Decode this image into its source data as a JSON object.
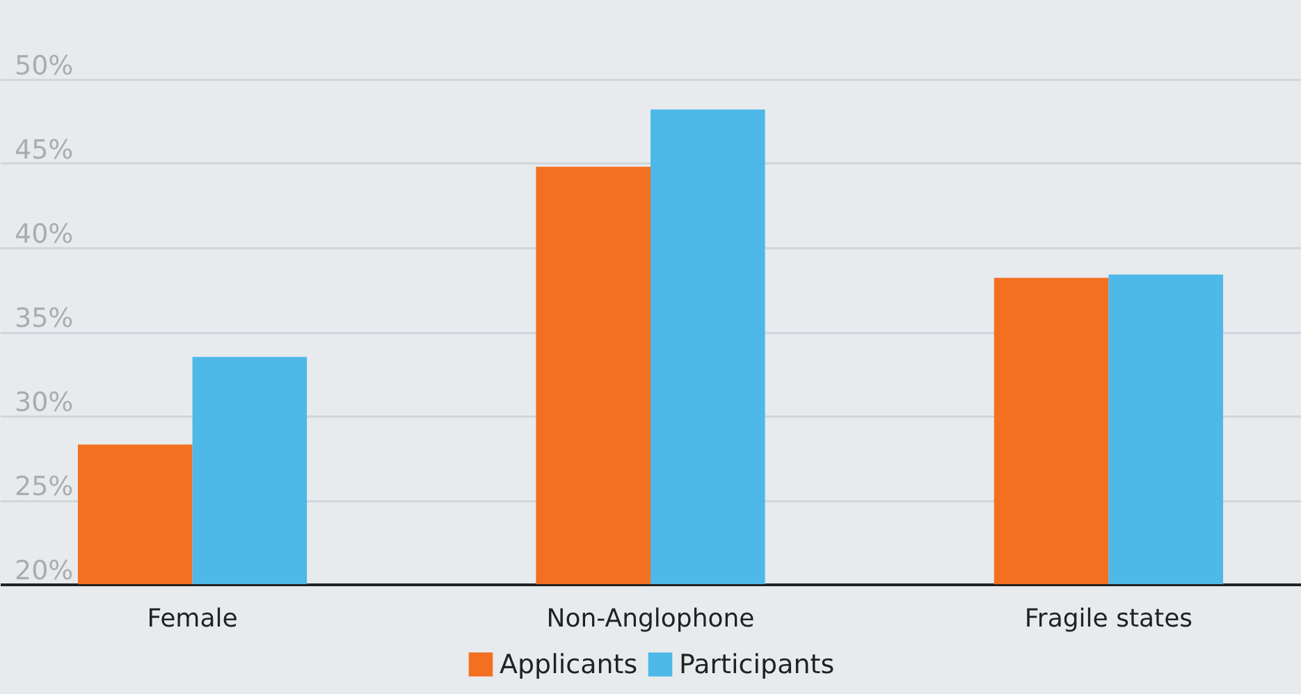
{
  "chart_data": {
    "type": "bar",
    "categories": [
      "Female",
      "Non-Anglophone",
      "Fragile states"
    ],
    "series": [
      {
        "name": "Applicants",
        "color": "#f37021",
        "values": [
          28.3,
          44.8,
          38.2
        ]
      },
      {
        "name": "Participants",
        "color": "#4eb8e8",
        "values": [
          33.5,
          48.2,
          38.4
        ]
      }
    ],
    "ylim": [
      20,
      50
    ],
    "yticks": [
      {
        "value": 20,
        "label": "20%"
      },
      {
        "value": 25,
        "label": "25%"
      },
      {
        "value": 30,
        "label": "30%"
      },
      {
        "value": 35,
        "label": "35%"
      },
      {
        "value": 40,
        "label": "40%"
      },
      {
        "value": 45,
        "label": "45%"
      },
      {
        "value": 50,
        "label": "50%"
      }
    ],
    "grid": "y",
    "legend": "bottom"
  }
}
